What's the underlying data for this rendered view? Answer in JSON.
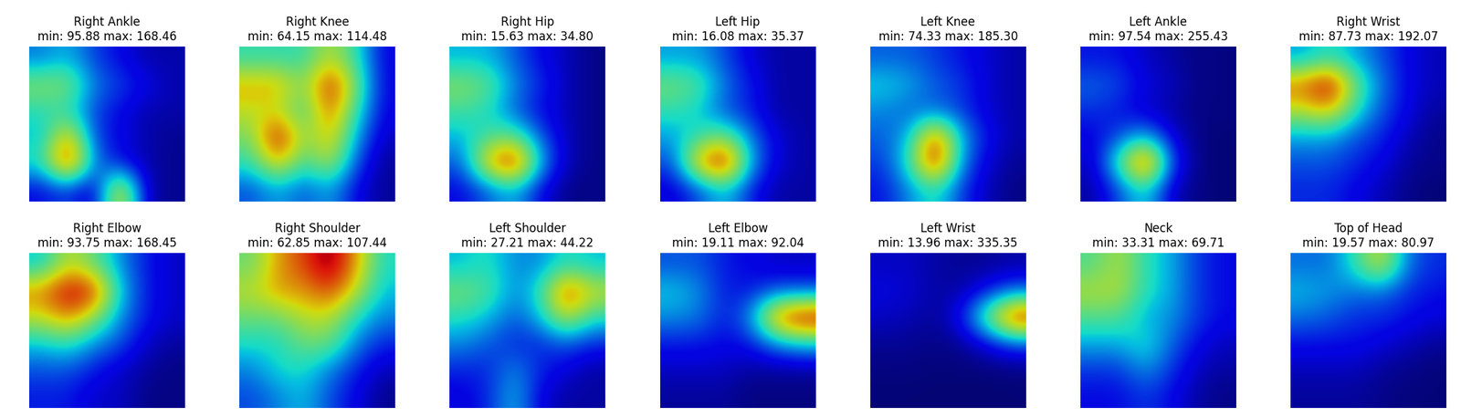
{
  "chart_data": [
    {
      "type": "heatmap",
      "title": "Right Ankle\nmin: 95.88 max: 168.46",
      "min": 95.88,
      "max": 168.46,
      "tick_labels": false,
      "cells": [
        [
          115,
          120,
          110,
          105,
          100,
          100
        ],
        [
          135,
          135,
          115,
          110,
          105,
          100
        ],
        [
          125,
          125,
          110,
          105,
          100,
          100
        ],
        [
          120,
          150,
          110,
          105,
          100,
          98
        ],
        [
          125,
          165,
          115,
          105,
          100,
          98
        ],
        [
          105,
          110,
          100,
          150,
          100,
          98
        ]
      ]
    },
    {
      "type": "heatmap",
      "title": "Right Knee\nmin: 64.15 max: 114.48",
      "min": 64.15,
      "max": 114.48,
      "tick_labels": false,
      "cells": [
        [
          85,
          85,
          85,
          95,
          85,
          70
        ],
        [
          100,
          100,
          90,
          110,
          90,
          70
        ],
        [
          95,
          95,
          85,
          105,
          85,
          70
        ],
        [
          90,
          112,
          90,
          100,
          80,
          68
        ],
        [
          85,
          100,
          85,
          95,
          75,
          66
        ],
        [
          75,
          80,
          75,
          80,
          70,
          66
        ]
      ]
    },
    {
      "type": "heatmap",
      "title": "Right Hip\nmin: 15.63 max: 34.80",
      "min": 15.63,
      "max": 34.8,
      "tick_labels": false,
      "cells": [
        [
          22,
          22,
          20,
          18,
          17,
          16
        ],
        [
          26,
          25,
          21,
          19,
          17,
          16
        ],
        [
          24,
          23,
          20,
          18,
          17,
          16
        ],
        [
          22,
          24,
          25,
          20,
          17,
          16
        ],
        [
          20,
          30,
          34,
          22,
          17,
          16
        ],
        [
          18,
          20,
          22,
          18,
          16,
          16
        ]
      ]
    },
    {
      "type": "heatmap",
      "title": "Left Hip\nmin: 16.08 max: 35.37",
      "min": 16.08,
      "max": 35.37,
      "tick_labels": false,
      "cells": [
        [
          22,
          22,
          20,
          18,
          17,
          17
        ],
        [
          26,
          25,
          21,
          19,
          17,
          17
        ],
        [
          24,
          23,
          20,
          19,
          17,
          17
        ],
        [
          22,
          24,
          26,
          21,
          18,
          17
        ],
        [
          20,
          31,
          35,
          22,
          18,
          17
        ],
        [
          18,
          20,
          23,
          19,
          17,
          17
        ]
      ]
    },
    {
      "type": "heatmap",
      "title": "Left Knee\nmin: 74.33 max: 185.30",
      "min": 74.33,
      "max": 185.3,
      "tick_labels": false,
      "cells": [
        [
          100,
          100,
          95,
          90,
          85,
          80
        ],
        [
          115,
          110,
          100,
          95,
          85,
          80
        ],
        [
          105,
          100,
          100,
          95,
          85,
          80
        ],
        [
          100,
          110,
          170,
          110,
          90,
          80
        ],
        [
          95,
          120,
          180,
          105,
          85,
          78
        ],
        [
          90,
          105,
          120,
          95,
          82,
          76
        ]
      ]
    },
    {
      "type": "heatmap",
      "title": "Left Ankle\nmin: 97.54 max: 255.43",
      "min": 97.54,
      "max": 255.43,
      "tick_labels": false,
      "cells": [
        [
          120,
          120,
          110,
          105,
          100,
          100
        ],
        [
          135,
          130,
          115,
          110,
          100,
          100
        ],
        [
          125,
          120,
          110,
          105,
          100,
          100
        ],
        [
          115,
          130,
          150,
          115,
          100,
          98
        ],
        [
          110,
          170,
          250,
          130,
          100,
          98
        ],
        [
          105,
          130,
          160,
          110,
          100,
          98
        ]
      ]
    },
    {
      "type": "heatmap",
      "title": "Right Wrist\nmin: 87.73 max: 192.07",
      "min": 87.73,
      "max": 192.07,
      "tick_labels": false,
      "cells": [
        [
          120,
          130,
          120,
          110,
          100,
          95
        ],
        [
          170,
          190,
          140,
          115,
          100,
          95
        ],
        [
          150,
          160,
          130,
          110,
          100,
          92
        ],
        [
          120,
          120,
          110,
          105,
          95,
          90
        ],
        [
          110,
          110,
          105,
          100,
          92,
          90
        ],
        [
          105,
          105,
          100,
          95,
          90,
          88
        ]
      ]
    },
    {
      "type": "heatmap",
      "title": "Right Elbow\nmin: 93.75 max: 168.45",
      "min": 93.75,
      "max": 168.45,
      "tick_labels": false,
      "cells": [
        [
          120,
          140,
          130,
          115,
          105,
          100
        ],
        [
          150,
          165,
          160,
          120,
          105,
          100
        ],
        [
          140,
          150,
          135,
          115,
          105,
          100
        ],
        [
          120,
          125,
          115,
          110,
          100,
          97
        ],
        [
          110,
          110,
          105,
          100,
          97,
          95
        ],
        [
          105,
          105,
          100,
          100,
          95,
          95
        ]
      ]
    },
    {
      "type": "heatmap",
      "title": "Right Shoulder\nmin: 62.85 max: 107.44",
      "min": 62.85,
      "max": 107.44,
      "tick_labels": false,
      "cells": [
        [
          85,
          95,
          100,
          107,
          95,
          80
        ],
        [
          90,
          95,
          95,
          100,
          90,
          78
        ],
        [
          85,
          85,
          90,
          90,
          80,
          75
        ],
        [
          80,
          80,
          85,
          85,
          75,
          70
        ],
        [
          75,
          80,
          80,
          75,
          70,
          66
        ],
        [
          72,
          75,
          78,
          72,
          68,
          64
        ]
      ]
    },
    {
      "type": "heatmap",
      "title": "Left Shoulder\nmin: 27.21 max: 44.22",
      "min": 27.21,
      "max": 44.22,
      "tick_labels": false,
      "cells": [
        [
          33,
          34,
          32,
          32,
          34,
          33
        ],
        [
          36,
          35,
          32,
          34,
          42,
          38
        ],
        [
          34,
          33,
          31,
          33,
          38,
          34
        ],
        [
          32,
          31,
          30,
          30,
          31,
          30
        ],
        [
          30,
          30,
          32,
          30,
          29,
          28
        ],
        [
          29,
          30,
          33,
          29,
          28,
          28
        ]
      ]
    },
    {
      "type": "heatmap",
      "title": "Left Elbow\nmin: 19.11 max: 92.04",
      "min": 19.11,
      "max": 92.04,
      "tick_labels": false,
      "cells": [
        [
          35,
          35,
          30,
          28,
          25,
          25
        ],
        [
          45,
          40,
          30,
          30,
          35,
          35
        ],
        [
          40,
          38,
          30,
          40,
          80,
          90
        ],
        [
          30,
          30,
          28,
          30,
          40,
          45
        ],
        [
          25,
          25,
          25,
          22,
          22,
          22
        ],
        [
          22,
          22,
          22,
          20,
          20,
          20
        ]
      ]
    },
    {
      "type": "heatmap",
      "title": "Left Wrist\nmin: 13.96 max: 335.35",
      "min": 13.96,
      "max": 335.35,
      "tick_labels": false,
      "cells": [
        [
          40,
          40,
          30,
          25,
          25,
          30
        ],
        [
          50,
          45,
          30,
          30,
          60,
          90
        ],
        [
          40,
          35,
          25,
          60,
          180,
          320
        ],
        [
          25,
          25,
          20,
          25,
          50,
          80
        ],
        [
          18,
          18,
          16,
          16,
          16,
          18
        ],
        [
          15,
          15,
          14,
          14,
          14,
          15
        ]
      ]
    },
    {
      "type": "heatmap",
      "title": "Neck\nmin: 33.31 max: 69.71",
      "min": 33.31,
      "max": 69.71,
      "tick_labels": false,
      "cells": [
        [
          50,
          55,
          48,
          45,
          40,
          38
        ],
        [
          55,
          55,
          48,
          45,
          40,
          38
        ],
        [
          50,
          50,
          45,
          44,
          40,
          38
        ],
        [
          45,
          45,
          48,
          42,
          38,
          36
        ],
        [
          40,
          40,
          44,
          40,
          36,
          35
        ],
        [
          38,
          38,
          40,
          38,
          35,
          34
        ]
      ]
    },
    {
      "type": "heatmap",
      "title": "Top of Head\nmin: 19.57 max: 80.97",
      "min": 19.57,
      "max": 80.97,
      "tick_labels": false,
      "cells": [
        [
          35,
          35,
          45,
          60,
          35,
          30
        ],
        [
          40,
          38,
          35,
          35,
          30,
          28
        ],
        [
          35,
          33,
          30,
          30,
          28,
          26
        ],
        [
          28,
          28,
          28,
          26,
          24,
          22
        ],
        [
          24,
          24,
          24,
          22,
          21,
          20
        ],
        [
          22,
          22,
          22,
          21,
          20,
          20
        ]
      ]
    }
  ]
}
